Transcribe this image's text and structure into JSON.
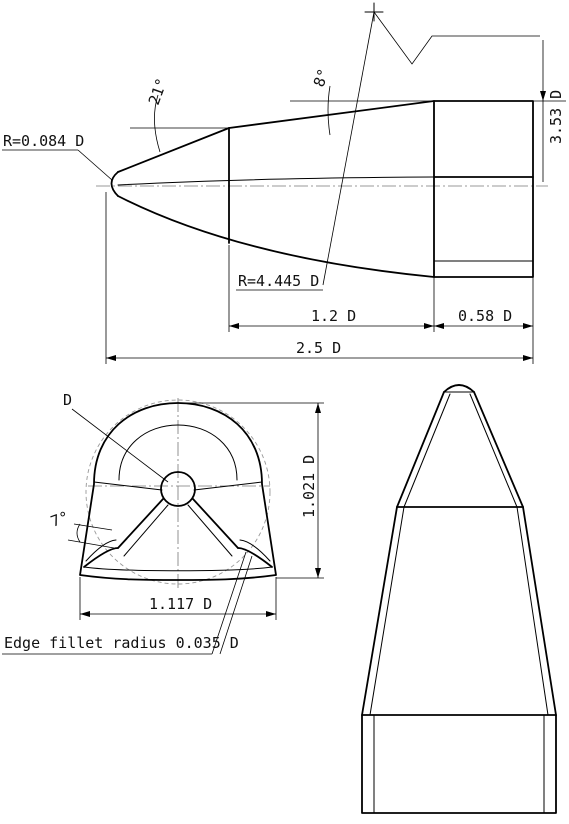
{
  "side_view": {
    "nose_radius": "R=0.084 D",
    "ogive_radius": "R=4.445 D",
    "cone_angle": "21°",
    "ogive_angle": "8°",
    "body_length": "1.2 D",
    "base_length": "0.58 D",
    "total_length": "2.5 D",
    "base_height": "3.53 D"
  },
  "front_view": {
    "diameter": "D",
    "angle": "7°",
    "width": "1.117 D",
    "height": "1.021 D",
    "edge_fillet": "Edge fillet radius 0.035 D"
  }
}
